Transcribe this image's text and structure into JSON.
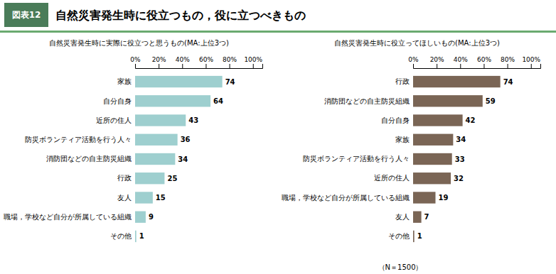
{
  "title": "自然災害発生時に役立つもの，役に立つべきもの",
  "annotations": [
    "図表12",
    "（N＝1500）"
  ],
  "chart_data": [
    {
      "type": "bar",
      "orientation": "horizontal",
      "title": "自然災害発生時に実際に役立つと思うもの(MA:上位3つ)",
      "categories": [
        "家族",
        "自分自身",
        "近所の住人",
        "防災ボランティア活動を行う人々",
        "消防団などの自主防災組織",
        "行政",
        "友人",
        "職場，学校など自分が所属している組織",
        "その他"
      ],
      "values": [
        74,
        64,
        43,
        36,
        34,
        25,
        15,
        9,
        1
      ],
      "color": "#9ecfcf",
      "xlim": [
        0,
        108
      ],
      "xticks": [
        {
          "value": 0,
          "label": "0%"
        },
        {
          "value": 20,
          "label": "20%"
        },
        {
          "value": 40,
          "label": "40%"
        },
        {
          "value": 60,
          "label": "60%"
        },
        {
          "value": 80,
          "label": "80%"
        },
        {
          "value": 100,
          "label": "100%"
        }
      ],
      "data_labels": true,
      "grid": false
    },
    {
      "type": "bar",
      "orientation": "horizontal",
      "title": "自然災害発生時に役立ってほしいもの(MA:上位3つ)",
      "categories": [
        "行政",
        "消防団などの自主防災組織",
        "自分自身",
        "家族",
        "防災ボランティア活動を行う人々",
        "近所の住人",
        "職場，学校など自分が所属している組織",
        "友人",
        "その他"
      ],
      "values": [
        74,
        59,
        42,
        34,
        33,
        32,
        19,
        7,
        1
      ],
      "color": "#7a6555",
      "xlim": [
        0,
        108
      ],
      "xticks": [
        {
          "value": 0,
          "label": "0%"
        },
        {
          "value": 20,
          "label": "20%"
        },
        {
          "value": 40,
          "label": "40%"
        },
        {
          "value": 60,
          "label": "60%"
        },
        {
          "value": 80,
          "label": "80%"
        },
        {
          "value": 100,
          "label": "100%"
        }
      ],
      "data_labels": true,
      "grid": false
    }
  ]
}
